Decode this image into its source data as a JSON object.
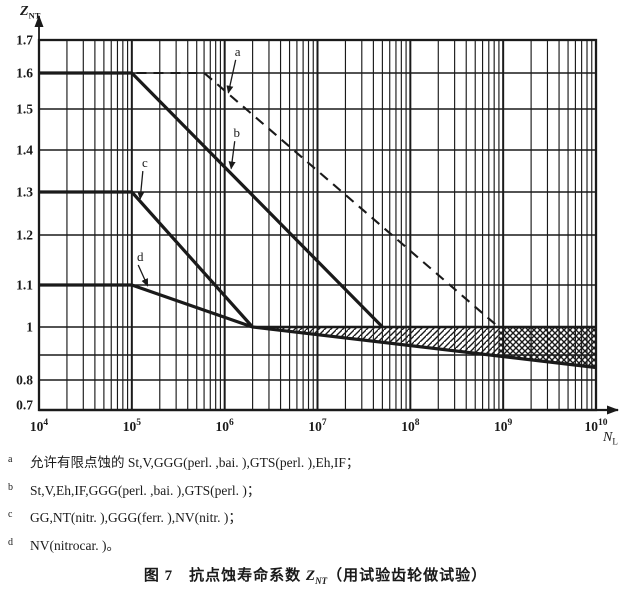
{
  "colors": {
    "ink": "#1a1a1a",
    "paper": "#ffffff"
  },
  "figure": {
    "caption": {
      "prefix": "图 7　抗点蚀寿命系数 ",
      "symbol": "Z",
      "symbol_sub": "NT",
      "suffix": "（用试验齿轮做试验）"
    },
    "footnotes": [
      {
        "marker": "a",
        "text": "允许有限点蚀的 St,V,GGG(perl. ,bai. ),GTS(perl. ),Eh,IF；"
      },
      {
        "marker": "b",
        "text": "St,V,Eh,IF,GGG(perl. ,bai. ),GTS(perl. )；"
      },
      {
        "marker": "c",
        "text": "GG,NT(nitr. ),GGG(ferr. ),NV(nitr. )；"
      },
      {
        "marker": "d",
        "text": "NV(nitrocar. )。"
      }
    ]
  },
  "chart_data": {
    "type": "line",
    "title": "抗点蚀寿命系数 ZNT（用试验齿轮做试验）",
    "x_axis": {
      "symbol": "N",
      "symbol_sub": "L",
      "scale": "log",
      "tick_base": "10",
      "tick_exponents": [
        "4",
        "5",
        "6",
        "7",
        "8",
        "9",
        "10"
      ],
      "range_log": [
        4,
        10
      ],
      "minor_grid": true
    },
    "y_axis": {
      "symbol": "Z",
      "symbol_sub": "NT",
      "range": [
        0.7,
        1.7
      ],
      "ticks": [
        {
          "v": 1.7,
          "label": "1.7"
        },
        {
          "v": 1.6,
          "label": "1.6"
        },
        {
          "v": 1.5,
          "label": "1.5"
        },
        {
          "v": 1.4,
          "label": "1.4"
        },
        {
          "v": 1.3,
          "label": "1.3"
        },
        {
          "v": 1.2,
          "label": "1.2"
        },
        {
          "v": 1.1,
          "label": "1.1"
        },
        {
          "v": 1.0,
          "label": "1"
        },
        {
          "v": 0.9,
          "label": ""
        },
        {
          "v": 0.8,
          "label": "0.8"
        },
        {
          "v": 0.7,
          "label": "0.7"
        }
      ]
    },
    "series": [
      {
        "id": "a",
        "style": "dashed",
        "points": [
          [
            5.05,
            1.6
          ],
          [
            5.78,
            1.6
          ],
          [
            8.95,
            1.0
          ]
        ]
      },
      {
        "id": "b",
        "style": "solid-thick",
        "points": [
          [
            4.0,
            1.6
          ],
          [
            5.0,
            1.6
          ],
          [
            7.7,
            1.0
          ]
        ]
      },
      {
        "id": "c",
        "style": "solid-thick",
        "points": [
          [
            4.0,
            1.3
          ],
          [
            5.0,
            1.3
          ],
          [
            6.3,
            1.0
          ]
        ]
      },
      {
        "id": "d",
        "style": "solid-thick",
        "points": [
          [
            4.0,
            1.1
          ],
          [
            5.0,
            1.1
          ],
          [
            6.3,
            1.0
          ]
        ]
      },
      {
        "id": "long-life-upper",
        "style": "solid-medium",
        "points": [
          [
            6.3,
            1.0
          ],
          [
            10.0,
            1.0
          ]
        ]
      },
      {
        "id": "long-life-lower",
        "style": "solid-thick",
        "points": [
          [
            6.3,
            1.0
          ],
          [
            10.0,
            0.85
          ]
        ]
      }
    ],
    "hatch_band": {
      "top_value": 1.0,
      "start_log": 6.55,
      "crosshatch_start_log": 8.95,
      "end_log": 10.0,
      "bottom_line_start": [
        6.3,
        1.0
      ],
      "bottom_line_end": [
        10.0,
        0.85
      ]
    },
    "annotations": [
      {
        "text": "a",
        "at": [
          6.14,
          1.664
        ],
        "arrow_to": [
          6.04,
          1.545
        ]
      },
      {
        "text": "b",
        "at": [
          6.13,
          1.441
        ],
        "arrow_to": [
          6.07,
          1.356
        ]
      },
      {
        "text": "c",
        "at": [
          5.14,
          1.369
        ],
        "arrow_to": [
          5.09,
          1.284
        ]
      },
      {
        "text": "d",
        "at": [
          5.09,
          1.156
        ],
        "arrow_to": [
          5.17,
          1.098
        ]
      }
    ]
  }
}
